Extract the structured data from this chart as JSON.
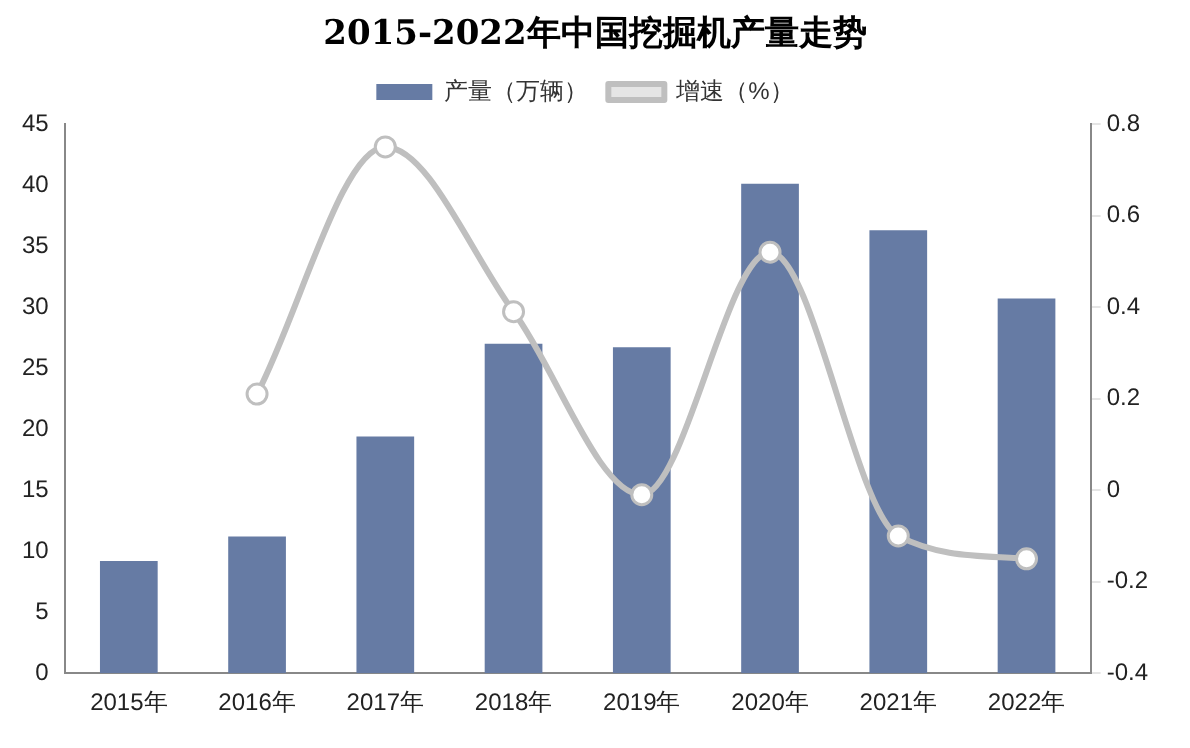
{
  "chart_data": {
    "type": "bar",
    "title": "2015-2022年中国挖掘机产量走势",
    "categories": [
      "2015年",
      "2016年",
      "2017年",
      "2018年",
      "2019年",
      "2020年",
      "2021年",
      "2022年"
    ],
    "series": [
      {
        "name": "产量（万辆）",
        "color": "#667ba4",
        "values": [
          9.2,
          11.2,
          19.4,
          27,
          26.7,
          40.1,
          36.3,
          30.7
        ]
      },
      {
        "name": "增速（%）",
        "type": "line",
        "axis": "y2",
        "color": "#bfbfbf",
        "marker": "circle",
        "values": [
          null,
          0.21,
          0.75,
          0.39,
          -0.01,
          0.52,
          -0.1,
          -0.15
        ]
      }
    ],
    "ylim": [
      0,
      45
    ],
    "yticks": [
      0,
      5,
      10,
      15,
      20,
      25,
      30,
      35,
      40,
      45
    ],
    "y2lim": [
      -0.4,
      0.8
    ],
    "y2ticks": [
      -0.4,
      -0.2,
      0,
      0.2,
      0.4,
      0.6,
      0.8
    ],
    "grid": false,
    "legend": "top"
  }
}
